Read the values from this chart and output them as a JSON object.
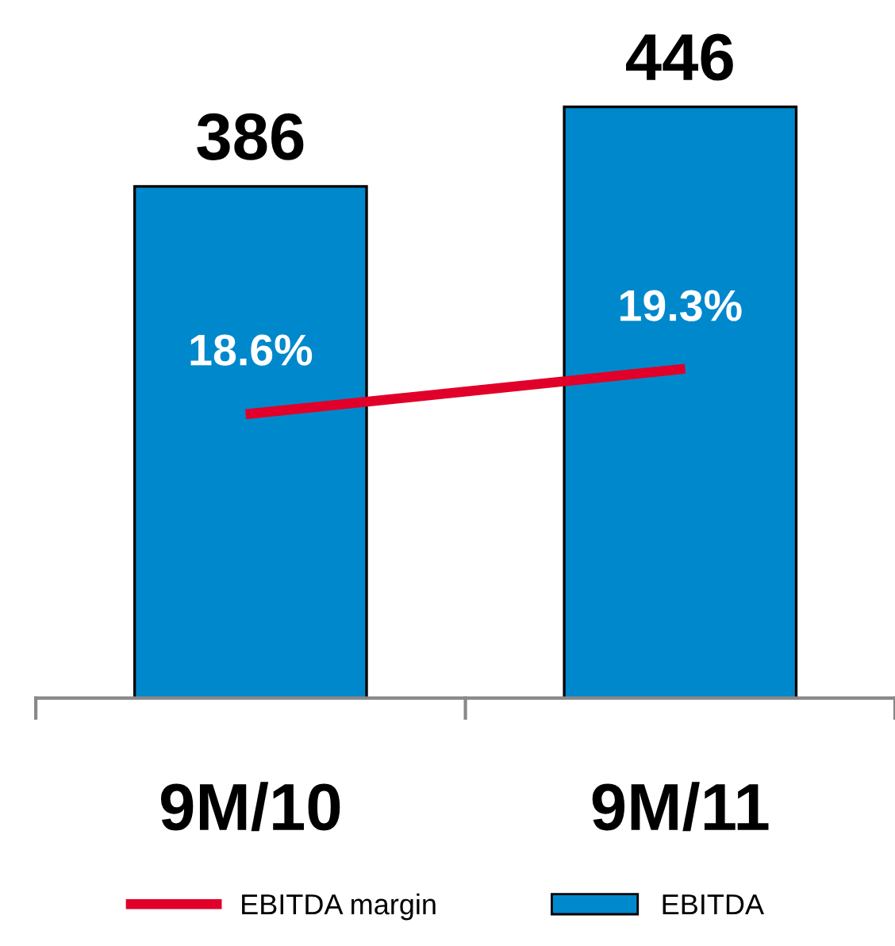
{
  "chart_data": {
    "type": "bar",
    "categories": [
      "9M/10",
      "9M/11"
    ],
    "legend": "bottom",
    "series": [
      {
        "name": "EBITDA",
        "color": "#0088cc",
        "values": [
          386,
          446
        ],
        "value_labels": [
          "386",
          "446"
        ]
      },
      {
        "name": "EBITDA margin",
        "type": "line",
        "axis": "y2",
        "color": "#e0002a",
        "values": [
          18.6,
          19.3
        ],
        "value_labels": [
          "18.6%",
          "19.3%"
        ]
      }
    ]
  }
}
